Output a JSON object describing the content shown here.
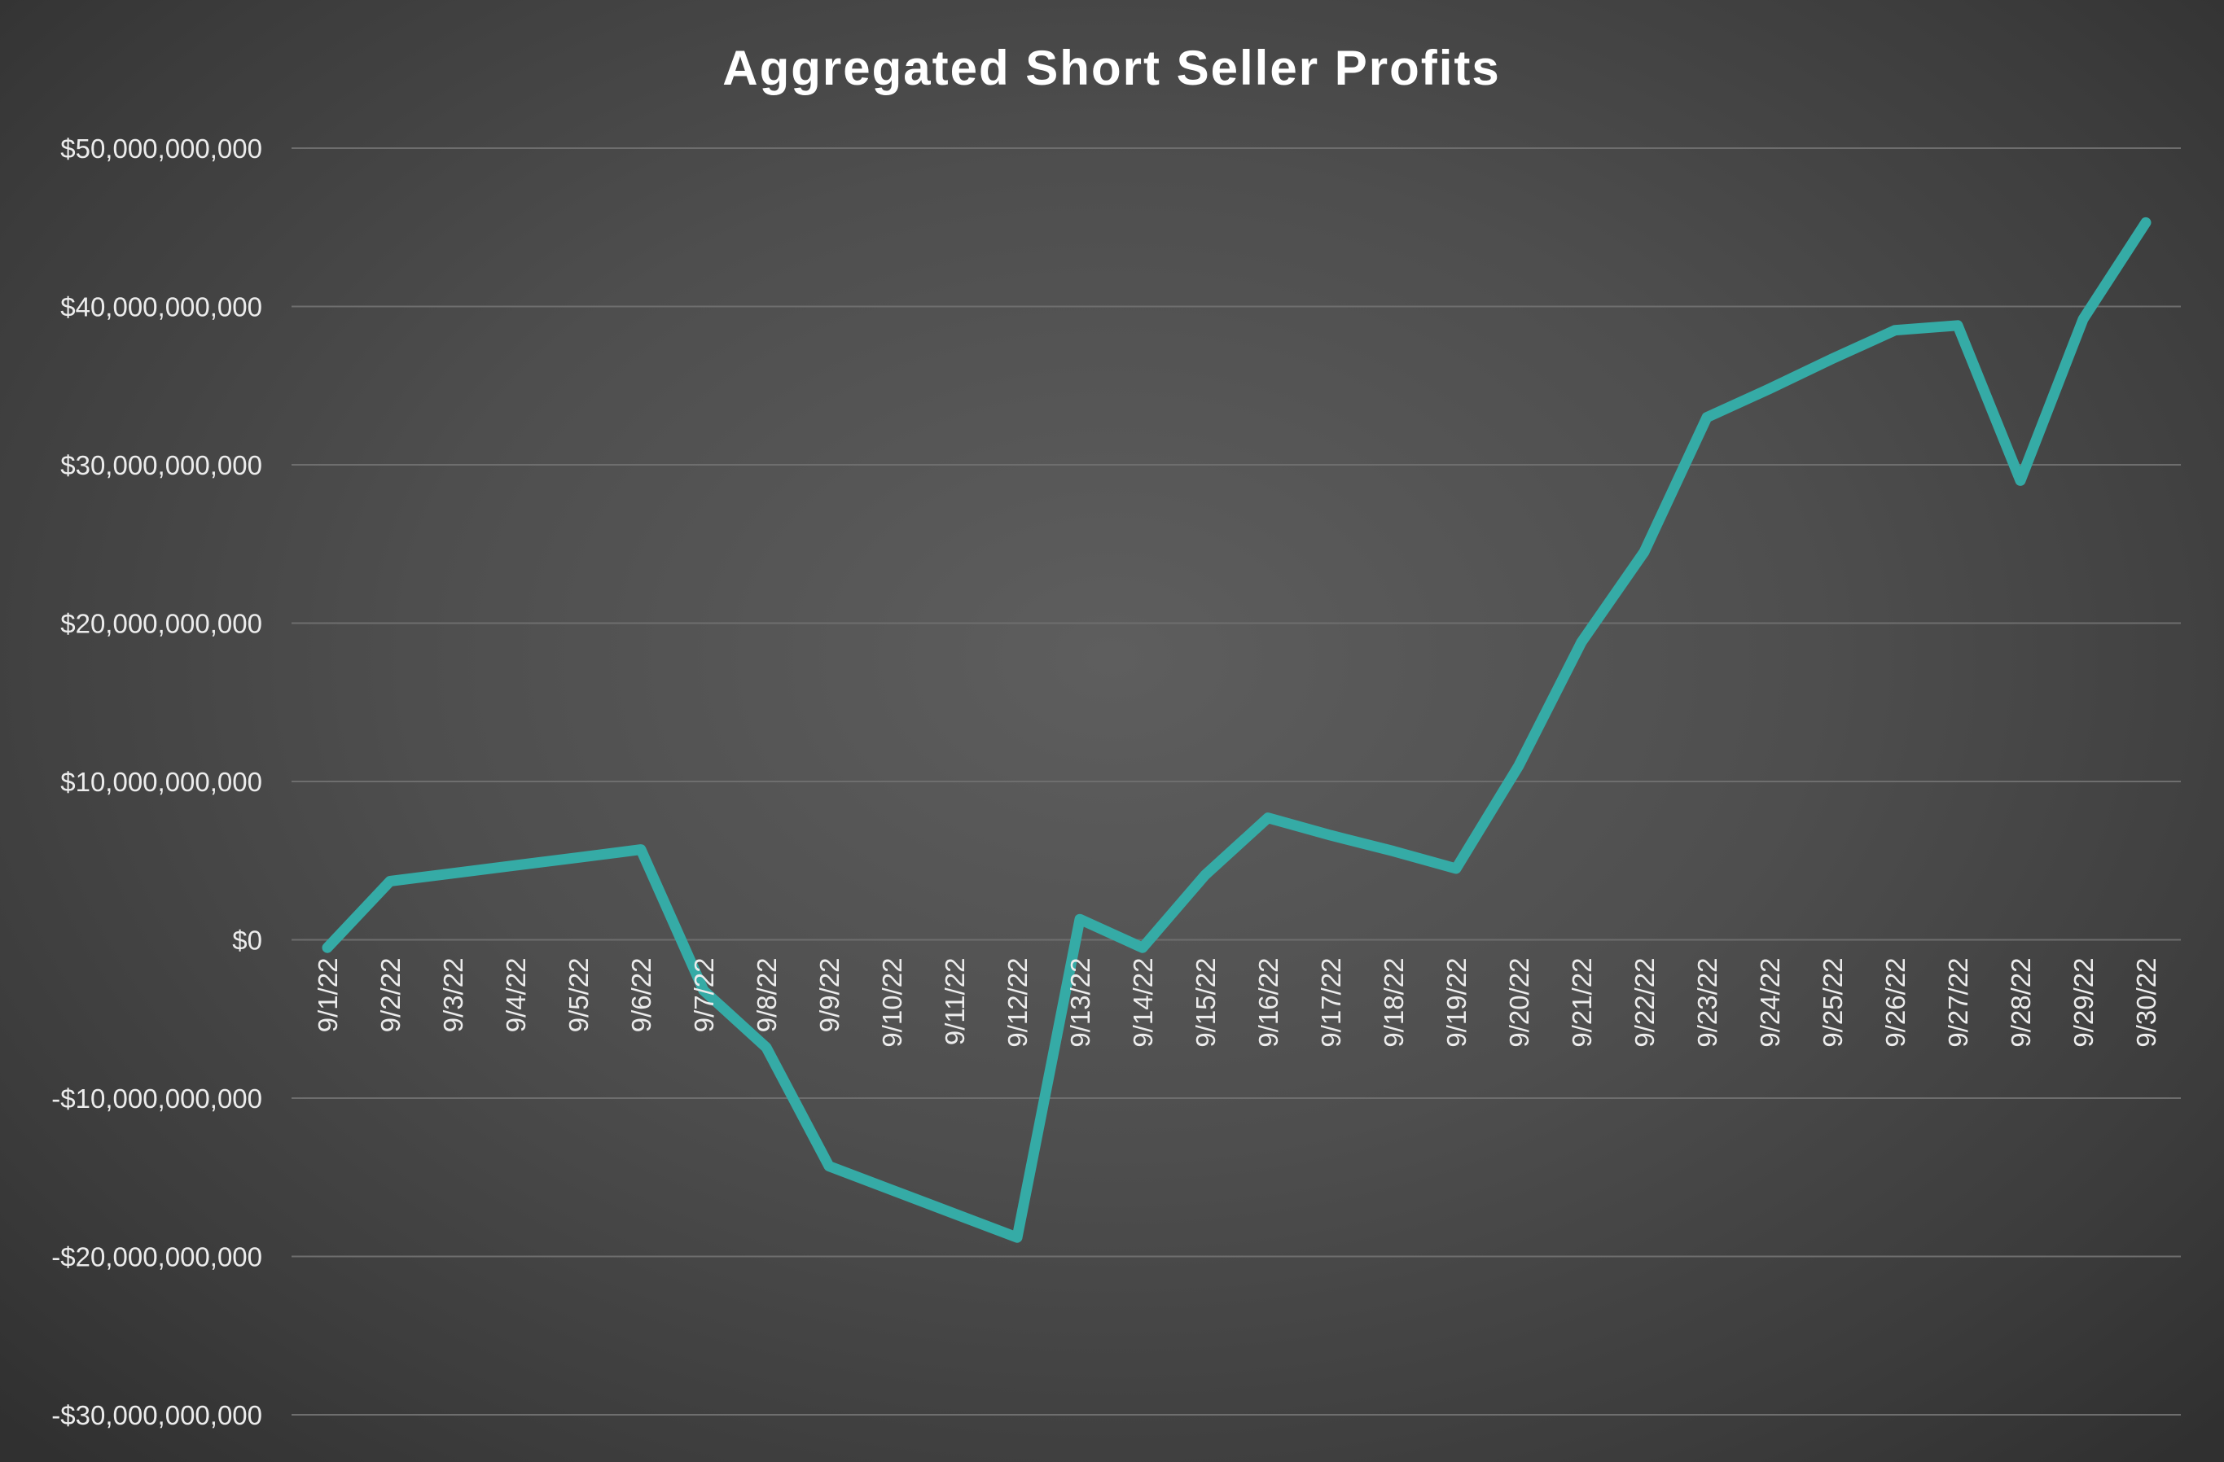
{
  "chart_data": {
    "type": "line",
    "title": "Aggregated Short Seller Profits",
    "xlabel": "",
    "ylabel": "",
    "ylim": [
      -30000000000,
      50000000000
    ],
    "ytick_values": [
      50000000000,
      40000000000,
      30000000000,
      20000000000,
      10000000000,
      0,
      -10000000000,
      -20000000000,
      -30000000000
    ],
    "ytick_labels": [
      "$50,000,000,000",
      "$40,000,000,000",
      "$30,000,000,000",
      "$20,000,000,000",
      "$10,000,000,000",
      "$0",
      "-$10,000,000,000",
      "-$20,000,000,000",
      "-$30,000,000,000"
    ],
    "grid": true,
    "legend": "none",
    "categories": [
      "9/1/22",
      "9/2/22",
      "9/3/22",
      "9/4/22",
      "9/5/22",
      "9/6/22",
      "9/7/22",
      "9/8/22",
      "9/9/22",
      "9/10/22",
      "9/11/22",
      "9/12/22",
      "9/13/22",
      "9/14/22",
      "9/15/22",
      "9/16/22",
      "9/17/22",
      "9/18/22",
      "9/19/22",
      "9/20/22",
      "9/21/22",
      "9/22/22",
      "9/23/22",
      "9/24/22",
      "9/25/22",
      "9/26/22",
      "9/27/22",
      "9/28/22",
      "9/29/22",
      "9/30/22"
    ],
    "series": [
      {
        "values": [
          -500000000,
          3700000000,
          4200000000,
          4700000000,
          5200000000,
          5700000000,
          -3200000000,
          -6800000000,
          -14300000000,
          -15800000000,
          -17300000000,
          -18800000000,
          1300000000,
          -500000000,
          4100000000,
          7700000000,
          6600000000,
          5600000000,
          4500000000,
          11000000000,
          18800000000,
          24500000000,
          33000000000,
          34800000000,
          36700000000,
          38500000000,
          38800000000,
          29000000000,
          39200000000,
          45300000000
        ],
        "color": "#35aba6"
      }
    ],
    "colors": {
      "line": "#35aba6",
      "grid": "#6e6e6e",
      "text": "#ececec",
      "title": "#ffffff"
    }
  }
}
